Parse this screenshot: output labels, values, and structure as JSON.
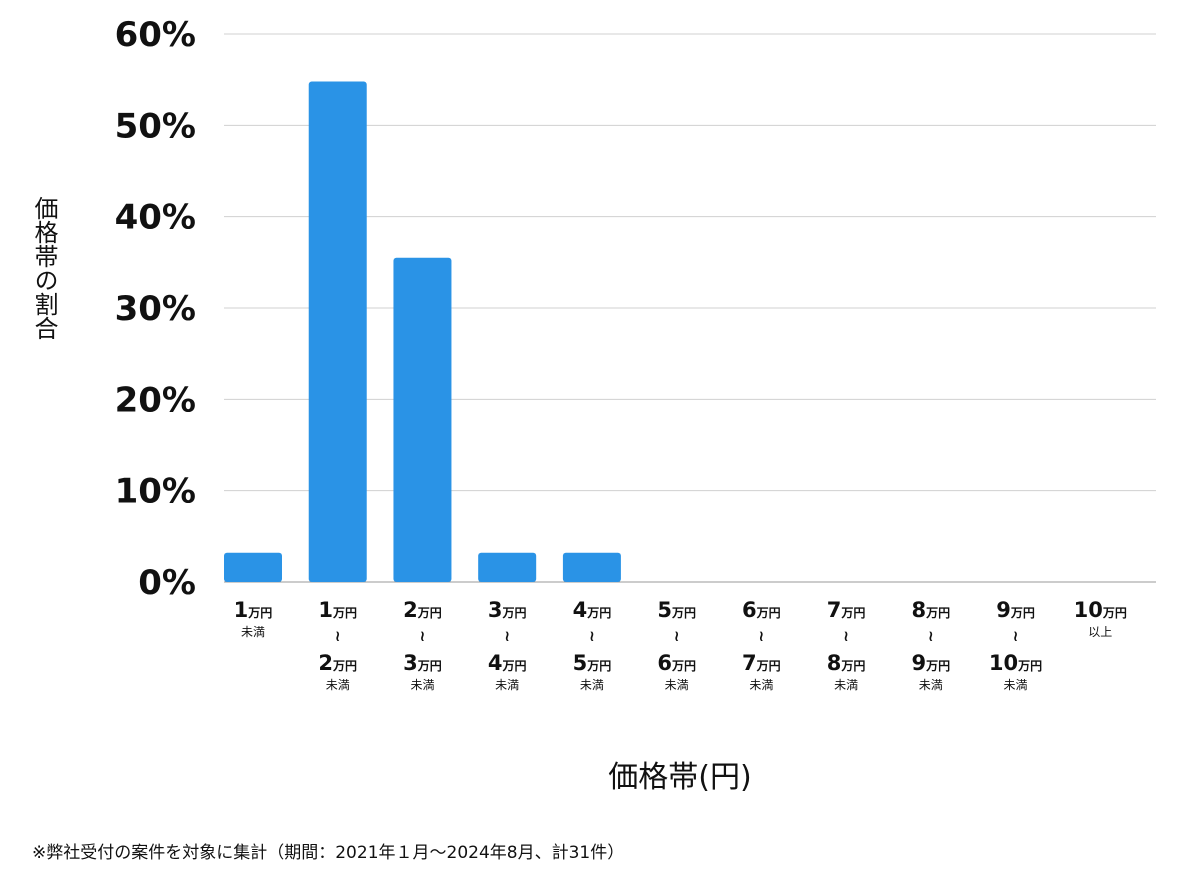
{
  "chart_data": {
    "type": "bar",
    "categories": [
      {
        "from": "1万円",
        "to": null,
        "note": "未満"
      },
      {
        "from": "1万円",
        "to": "2万円",
        "note": "未満"
      },
      {
        "from": "2万円",
        "to": "3万円",
        "note": "未満"
      },
      {
        "from": "3万円",
        "to": "4万円",
        "note": "未満"
      },
      {
        "from": "4万円",
        "to": "5万円",
        "note": "未満"
      },
      {
        "from": "5万円",
        "to": "6万円",
        "note": "未満"
      },
      {
        "from": "6万円",
        "to": "7万円",
        "note": "未満"
      },
      {
        "from": "7万円",
        "to": "8万円",
        "note": "未満"
      },
      {
        "from": "8万円",
        "to": "9万円",
        "note": "未満"
      },
      {
        "from": "9万円",
        "to": "10万円",
        "note": "未満"
      },
      {
        "from": "10万円",
        "to": null,
        "note": "以上"
      }
    ],
    "values": [
      3.2,
      54.8,
      35.5,
      3.2,
      3.2,
      0,
      0,
      0,
      0,
      0,
      0
    ],
    "ylim": [
      0,
      60
    ],
    "yticks": [
      "0%",
      "10%",
      "20%",
      "30%",
      "40%",
      "50%",
      "60%"
    ],
    "xlabel": "価格帯(円)",
    "ylabel": "価格帯の割合",
    "bar_color": "#2a93e6",
    "grid": true
  },
  "footnote": "※弊社受付の案件を対象に集計（期間：2021年１月～2024年8月、計31件）"
}
